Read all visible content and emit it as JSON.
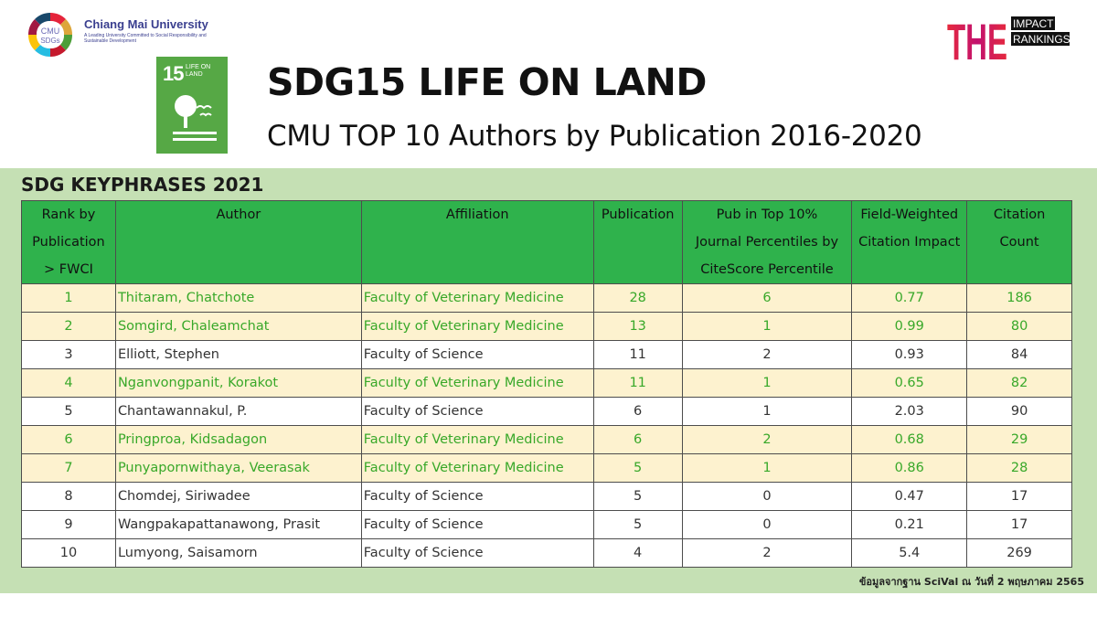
{
  "header": {
    "cmu_wheel_text": [
      "CMU",
      "SDGs"
    ],
    "cmu_name": "Chiang Mai University",
    "cmu_tagline": "A Leading University Committed to Social Responsibility and Sustainable Development",
    "the_letters": "THE",
    "the_words": [
      "IMPACT",
      "RANKINGS"
    ]
  },
  "sdg_tile": {
    "number": "15",
    "label": "LIFE ON LAND",
    "color": "#56a845"
  },
  "title": "SDG15 LIFE ON LAND",
  "subtitle": "CMU TOP 10 Authors by Publication 2016-2020",
  "panel": {
    "heading": "SDG KEYPHRASES 2021",
    "columns": [
      [
        "Rank by",
        "Publication",
        "> FWCI"
      ],
      [
        "Author"
      ],
      [
        "Affiliation"
      ],
      [
        "Publication"
      ],
      [
        "Pub in Top 10%",
        "Journal Percentiles by",
        "CiteScore Percentile"
      ],
      [
        "Field-Weighted",
        "Citation Impact"
      ],
      [
        "Citation",
        "Count"
      ]
    ],
    "rows": [
      {
        "rank": "1",
        "author": "Thitaram, Chatchote",
        "affiliation": "Faculty of Veterinary Medicine",
        "publication": "28",
        "top10": "6",
        "fwci": "0.77",
        "citations": "186",
        "group": "vet"
      },
      {
        "rank": "2",
        "author": "Somgird, Chaleamchat",
        "affiliation": "Faculty of Veterinary Medicine",
        "publication": "13",
        "top10": "1",
        "fwci": "0.99",
        "citations": "80",
        "group": "vet"
      },
      {
        "rank": "3",
        "author": "Elliott, Stephen",
        "affiliation": "Faculty of Science",
        "publication": "11",
        "top10": "2",
        "fwci": "0.93",
        "citations": "84",
        "group": "sci"
      },
      {
        "rank": "4",
        "author": "Nganvongpanit, Korakot",
        "affiliation": "Faculty of Veterinary Medicine",
        "publication": "11",
        "top10": "1",
        "fwci": "0.65",
        "citations": "82",
        "group": "vet"
      },
      {
        "rank": "5",
        "author": "Chantawannakul, P.",
        "affiliation": "Faculty of Science",
        "publication": "6",
        "top10": "1",
        "fwci": "2.03",
        "citations": "90",
        "group": "sci"
      },
      {
        "rank": "6",
        "author": "Pringproa, Kidsadagon",
        "affiliation": "Faculty of Veterinary Medicine",
        "publication": "6",
        "top10": "2",
        "fwci": "0.68",
        "citations": "29",
        "group": "vet"
      },
      {
        "rank": "7",
        "author": "Punyapornwithaya, Veerasak",
        "affiliation": "Faculty of Veterinary Medicine",
        "publication": "5",
        "top10": "1",
        "fwci": "0.86",
        "citations": "28",
        "group": "vet"
      },
      {
        "rank": "8",
        "author": "Chomdej, Siriwadee",
        "affiliation": "Faculty of Science",
        "publication": "5",
        "top10": "0",
        "fwci": "0.47",
        "citations": "17",
        "group": "sci"
      },
      {
        "rank": "9",
        "author": "Wangpakapattanawong, Prasit",
        "affiliation": "Faculty of Science",
        "publication": "5",
        "top10": "0",
        "fwci": "0.21",
        "citations": "17",
        "group": "sci"
      },
      {
        "rank": "10",
        "author": "Lumyong, Saisamorn",
        "affiliation": "Faculty of Science",
        "publication": "4",
        "top10": "2",
        "fwci": "5.4",
        "citations": "269",
        "group": "sci"
      }
    ],
    "source_note": "ข้อมูลจากฐาน SciVal ณ วันที่ 2 พฤษภาคม 2565"
  },
  "colors": {
    "panel_bg": "#c5e0b4",
    "header_row": "#2fb24c",
    "vet_row_bg": "#fdf2cf",
    "vet_row_text": "#38a829",
    "title_text": "#111111"
  }
}
